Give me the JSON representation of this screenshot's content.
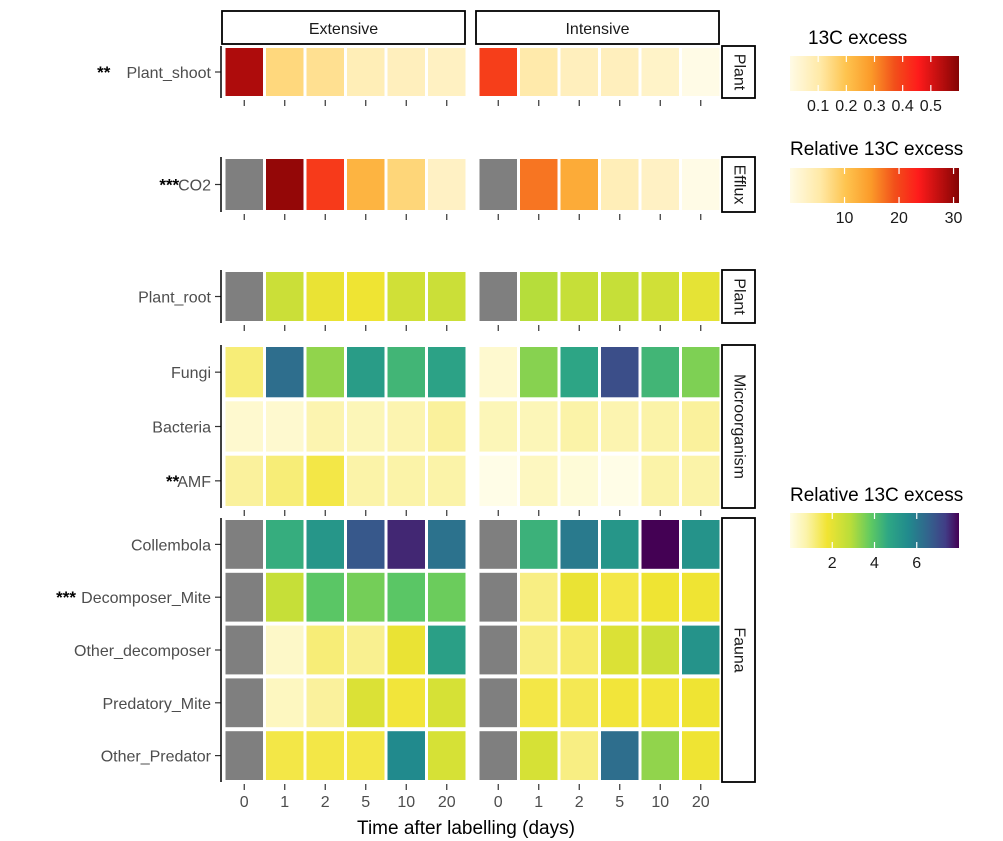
{
  "chart_data": {
    "type": "heatmap",
    "xlabel": "Time after labelling (days)",
    "x_ticks": [
      "0",
      "1",
      "2",
      "5",
      "10",
      "20"
    ],
    "panels": [
      "Extensive",
      "Intensive"
    ],
    "missing_color": "#7f7f7f",
    "groups": [
      {
        "facet": "Plant",
        "scale": "13C excess",
        "rows": [
          {
            "label": "Plant_shoot",
            "sig": "**",
            "values": {
              "Extensive": [
                0.55,
                0.15,
                0.13,
                0.08,
                0.07,
                0.06
              ],
              "Intensive": [
                0.4,
                0.1,
                0.07,
                0.07,
                0.05,
                0.0
              ]
            }
          }
        ]
      },
      {
        "facet": "Efflux",
        "scale": "Relative 13C excess",
        "rows": [
          {
            "label": "CO2",
            "sig": "***",
            "values": {
              "Extensive": [
                null,
                30,
                21,
                12,
                8,
                3
              ],
              "Intensive": [
                null,
                17,
                13,
                4,
                3,
                0
              ]
            }
          }
        ]
      },
      {
        "facet": "Plant",
        "scale": "Relative 13C excess",
        "rows": [
          {
            "label": "Plant_root",
            "sig": "",
            "values": {
              "Extensive": [
                null,
                2.5,
                1.9,
                1.8,
                2.4,
                2.5
              ],
              "Intensive": [
                null,
                2.9,
                2.6,
                2.6,
                2.4,
                2.0
              ]
            }
          }
        ]
      },
      {
        "facet": "Microorganism",
        "scale": "Relative 13C excess",
        "rows": [
          {
            "label": "Fungi",
            "sig": "",
            "values": {
              "Extensive": [
                1.2,
                6.3,
                3.3,
                5.0,
                4.3,
                4.8
              ],
              "Intensive": [
                0.3,
                3.4,
                4.7,
                7.0,
                4.3,
                3.5
              ]
            }
          },
          {
            "label": "Bacteria",
            "sig": "",
            "values": {
              "Extensive": [
                0.3,
                0.3,
                0.7,
                0.6,
                0.7,
                0.9
              ],
              "Intensive": [
                0.6,
                0.6,
                0.8,
                0.7,
                0.8,
                0.9
              ]
            }
          },
          {
            "label": "AMF",
            "sig": "**",
            "values": {
              "Extensive": [
                0.9,
                1.2,
                1.6,
                0.8,
                0.8,
                0.8
              ],
              "Intensive": [
                0.0,
                0.5,
                0.2,
                0.0,
                0.8,
                0.8
              ]
            }
          }
        ]
      },
      {
        "facet": "Fauna",
        "scale": "Relative 13C excess",
        "rows": [
          {
            "label": "Collembola",
            "sig": "",
            "values": {
              "Extensive": [
                null,
                4.5,
                5.2,
                6.8,
                7.6,
                6.2
              ],
              "Intensive": [
                null,
                4.4,
                6.0,
                5.2,
                8.0,
                5.3
              ]
            }
          },
          {
            "label": "Decomposer_Mite",
            "sig": "***",
            "values": {
              "Extensive": [
                null,
                2.6,
                3.9,
                3.6,
                3.9,
                3.7
              ],
              "Intensive": [
                null,
                1.1,
                1.9,
                1.6,
                1.8,
                1.8
              ]
            }
          },
          {
            "label": "Other_decomposer",
            "sig": "",
            "values": {
              "Extensive": [
                null,
                0.4,
                1.2,
                1.0,
                1.9,
                4.9
              ],
              "Intensive": [
                null,
                1.1,
                1.3,
                2.2,
                2.5,
                5.3
              ]
            }
          },
          {
            "label": "Predatory_Mite",
            "sig": "",
            "values": {
              "Extensive": [
                null,
                0.5,
                0.9,
                2.2,
                1.7,
                2.3
              ],
              "Intensive": [
                null,
                1.6,
                1.5,
                1.7,
                1.7,
                1.8
              ]
            }
          },
          {
            "label": "Other_Predator",
            "sig": "",
            "values": {
              "Extensive": [
                null,
                1.6,
                1.6,
                1.6,
                5.6,
                2.3
              ],
              "Intensive": [
                null,
                2.3,
                1.1,
                6.3,
                3.3,
                1.8
              ]
            }
          }
        ]
      }
    ],
    "legends": [
      {
        "title": "13C excess",
        "palette": "YlOrRd",
        "min": 0,
        "max": 0.6,
        "ticks": [
          "0.1",
          "0.2",
          "0.3",
          "0.4",
          "0.5"
        ],
        "tick_values": [
          0.1,
          0.2,
          0.3,
          0.4,
          0.5
        ]
      },
      {
        "title": "Relative 13C excess",
        "palette": "YlOrRd",
        "min": 0,
        "max": 31,
        "ticks": [
          "10",
          "20",
          "30"
        ],
        "tick_values": [
          10,
          20,
          30
        ]
      },
      {
        "title": "Relative 13C excess",
        "palette": "viridis-reversed",
        "min": 0,
        "max": 8,
        "ticks": [
          "2",
          "4",
          "6"
        ],
        "tick_values": [
          2,
          4,
          6
        ]
      }
    ]
  }
}
